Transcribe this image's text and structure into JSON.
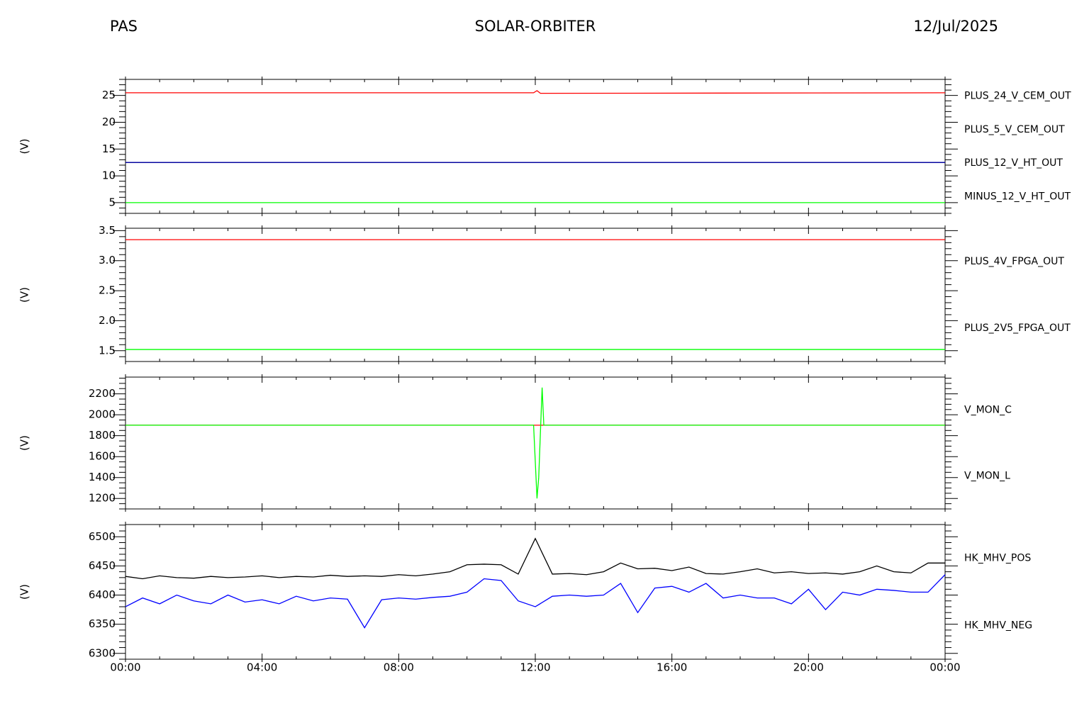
{
  "header": {
    "left": "PAS",
    "center": "SOLAR-ORBITER",
    "right": "12/Jul/2025"
  },
  "chart_data": [
    {
      "type": "line",
      "ylabel": "(V)",
      "ylim": [
        3,
        28
      ],
      "yticks": [
        5,
        10,
        15,
        20,
        25
      ],
      "yminor": 5,
      "x": [
        0,
        11.95,
        12.05,
        12.15,
        24
      ],
      "series": [
        {
          "name": "PLUS_24_V_CEM_OUT",
          "color": "#ff0000",
          "values": [
            25.5,
            25.5,
            25.9,
            25.4,
            25.5
          ]
        },
        {
          "name": "PLUS_5_V_CEM_OUT",
          "color": "#00ff00",
          "values": [
            5,
            5,
            5,
            5,
            5
          ]
        },
        {
          "name": "MINUS_12_V_HT_OUT",
          "color": "#000000",
          "values": [
            12.5,
            12.5,
            12.5,
            12.5,
            12.5
          ]
        },
        {
          "name": "PLUS_12_V_HT_OUT",
          "color": "#0000aa",
          "values": [
            12.5,
            12.5,
            12.5,
            12.5,
            12.5
          ]
        }
      ],
      "legend_order": [
        0,
        1,
        3,
        2
      ]
    },
    {
      "type": "line",
      "ylabel": "(V)",
      "ylim": [
        1.32,
        3.54
      ],
      "yticks": [
        1.5,
        {
          "value": 2,
          "label": "2.0"
        },
        2.5,
        {
          "value": 3,
          "label": "3.0"
        },
        3.5
      ],
      "yminor": 5,
      "x": [
        0,
        24
      ],
      "series": [
        {
          "name": "PLUS_4V_FPGA_OUT",
          "color": "#ff0000",
          "values": [
            3.35,
            3.35
          ]
        },
        {
          "name": "PLUS_2V5_FPGA_OUT",
          "color": "#00ff00",
          "values": [
            1.52,
            1.52
          ]
        }
      ],
      "legend_order": [
        0,
        1
      ]
    },
    {
      "type": "line",
      "ylabel": "(V)",
      "ylim": [
        1100,
        2360
      ],
      "yticks": [
        1200,
        1400,
        1600,
        1800,
        2000,
        2200
      ],
      "yminor": 4,
      "x": [
        0,
        11.95,
        12.05,
        12.1,
        12.2,
        12.25,
        24
      ],
      "series": [
        {
          "name": "V_MON_C",
          "color": "#ff0000",
          "values": [
            1900,
            1900,
            1900,
            1900,
            1900,
            1900,
            1900
          ]
        },
        {
          "name": "V_MON_L",
          "color": "#00ff00",
          "values": [
            1900,
            1900,
            1200,
            1400,
            2260,
            1900,
            1900
          ]
        }
      ],
      "legend_order": [
        0,
        1
      ]
    },
    {
      "type": "line",
      "ylabel": "(V)",
      "ylim": [
        6290,
        6521
      ],
      "yticks": [
        6300,
        6350,
        6400,
        6450,
        6500
      ],
      "yminor": 5,
      "xlim": [
        0,
        24
      ],
      "xminor": 4,
      "xticks": [
        {
          "value": 0,
          "label": "00:00"
        },
        {
          "value": 4,
          "label": "04:00"
        },
        {
          "value": 8,
          "label": "08:00"
        },
        {
          "value": 12,
          "label": "12:00"
        },
        {
          "value": 16,
          "label": "16:00"
        },
        {
          "value": 20,
          "label": "20:00"
        },
        {
          "value": 24,
          "label": "00:00"
        }
      ],
      "x": [
        0,
        0.5,
        1,
        1.5,
        2,
        2.5,
        3,
        3.5,
        4,
        4.5,
        5,
        5.5,
        6,
        6.5,
        7,
        7.5,
        8,
        8.5,
        9,
        9.5,
        10,
        10.5,
        11,
        11.5,
        12,
        12.5,
        13,
        13.5,
        14,
        14.5,
        15,
        15.5,
        16,
        16.5,
        17,
        17.5,
        18,
        18.5,
        19,
        19.5,
        20,
        20.5,
        21,
        21.5,
        22,
        22.5,
        23,
        23.5,
        24
      ],
      "series": [
        {
          "name": "HK_MHV_POS",
          "color": "#000000",
          "values": [
            6432,
            6428,
            6433,
            6430,
            6429,
            6432,
            6430,
            6431,
            6433,
            6430,
            6432,
            6431,
            6434,
            6432,
            6433,
            6432,
            6435,
            6433,
            6436,
            6440,
            6452,
            6453,
            6452,
            6436,
            6497,
            6436,
            6437,
            6435,
            6440,
            6455,
            6445,
            6446,
            6442,
            6448,
            6437,
            6436,
            6440,
            6445,
            6438,
            6440,
            6437,
            6438,
            6436,
            6440,
            6450,
            6440,
            6438,
            6455,
            6455
          ]
        },
        {
          "name": "HK_MHV_NEG",
          "color": "#0000ff",
          "values": [
            6380,
            6395,
            6385,
            6400,
            6390,
            6385,
            6400,
            6388,
            6392,
            6385,
            6398,
            6390,
            6395,
            6393,
            6344,
            6392,
            6395,
            6393,
            6396,
            6398,
            6405,
            6428,
            6425,
            6390,
            6380,
            6398,
            6400,
            6398,
            6400,
            6420,
            6370,
            6412,
            6415,
            6405,
            6420,
            6395,
            6400,
            6395,
            6395,
            6385,
            6410,
            6375,
            6405,
            6400,
            6410,
            6408,
            6405,
            6405,
            6435
          ]
        }
      ],
      "legend_order": [
        0,
        1
      ]
    }
  ]
}
